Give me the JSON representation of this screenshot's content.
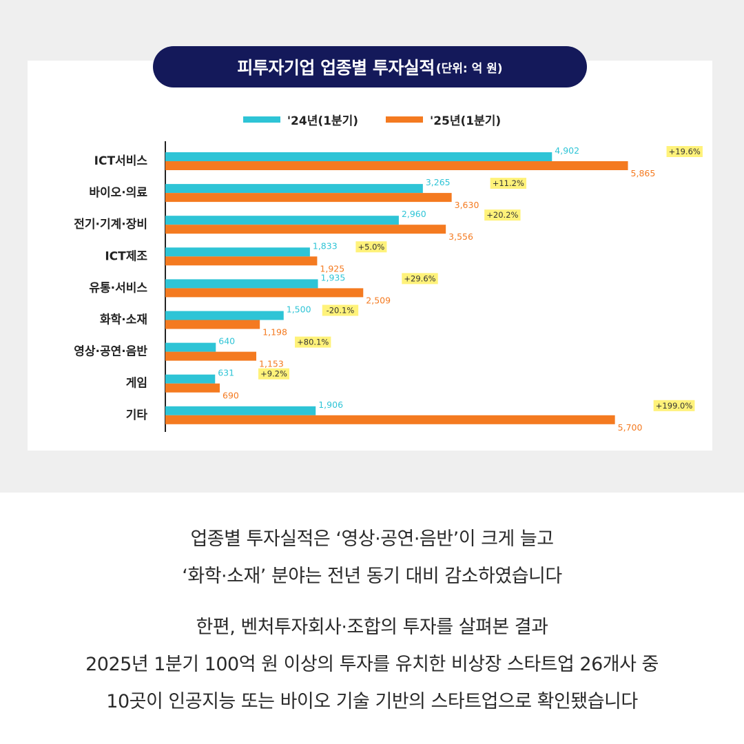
{
  "header": {
    "title": "피투자기업 업종별 투자실적",
    "unit": "(단위: 억 원)"
  },
  "legend": [
    {
      "name": "'24년(1분기)",
      "color": "#2ec4d6"
    },
    {
      "name": "'25년(1분기)",
      "color": "#f47a20"
    }
  ],
  "chart_data": {
    "type": "bar",
    "orientation": "horizontal",
    "title": "피투자기업 업종별 투자실적",
    "unit": "(단위: 억 원)",
    "categories": [
      "ICT서비스",
      "바이오·의료",
      "전기·기계·장비",
      "ICT제조",
      "유통·서비스",
      "화학·소재",
      "영상·공연·음반",
      "게임",
      "기타"
    ],
    "series": [
      {
        "name": "'24년(1분기)",
        "color": "#2ec4d6",
        "values": [
          4902,
          3265,
          2960,
          1833,
          1935,
          1500,
          640,
          631,
          1906
        ],
        "labels": [
          "4,902",
          "3,265",
          "2,960",
          "1,833",
          "1,935",
          "1,500",
          "640",
          "631",
          "1,906"
        ]
      },
      {
        "name": "'25년(1분기)",
        "color": "#f47a20",
        "values": [
          5865,
          3630,
          3556,
          1925,
          2509,
          1198,
          1153,
          690,
          5700
        ],
        "labels": [
          "5,865",
          "3,630",
          "3,556",
          "1,925",
          "2,509",
          "1,198",
          "1,153",
          "690",
          "5,700"
        ]
      }
    ],
    "changes": [
      "+19.6%",
      "+11.2%",
      "+20.2%",
      "+5.0%",
      "+29.6%",
      "-20.1%",
      "+80.1%",
      "+9.2%",
      "+199.0%"
    ],
    "change_color": "#fff27a",
    "xlim": [
      0,
      6000
    ]
  },
  "caption": {
    "line1": "업종별 투자실적은 ‘영상·공연·음반’이 크게 늘고",
    "line2": "‘화학·소재’ 분야는 전년 동기 대비 감소하였습니다",
    "line3": "한편, 벤처투자회사·조합의 투자를 살펴본 결과",
    "line4": "2025년 1분기 100억 원 이상의 투자를 유치한 비상장 스타트업 26개사 중",
    "line5": "10곳이 인공지능 또는 바이오 기술 기반의 스타트업으로 확인됐습니다"
  }
}
